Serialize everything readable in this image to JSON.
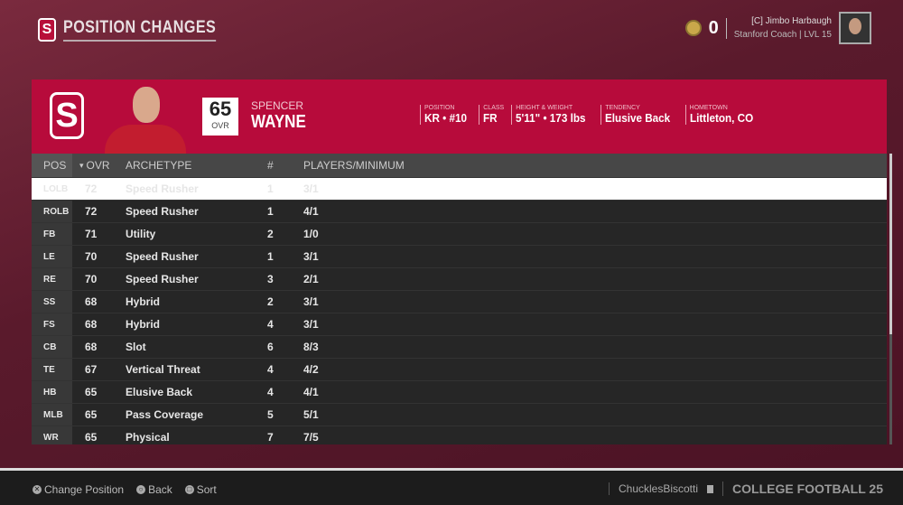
{
  "header": {
    "title": "POSITION CHANGES",
    "coins": "0",
    "coach_name": "[C] Jimbo Harbaugh",
    "coach_sub": "Stanford Coach | LVL 15"
  },
  "player": {
    "first_name": "SPENCER",
    "last_name": "WAYNE",
    "ovr": "65",
    "ovr_label": "OVR",
    "info": [
      {
        "label": "Position",
        "value": "KR • #10"
      },
      {
        "label": "Class",
        "value": "FR"
      },
      {
        "label": "Height & Weight",
        "value": "5'11\" • 173 lbs"
      },
      {
        "label": "Tendency",
        "value": "Elusive Back"
      },
      {
        "label": "Hometown",
        "value": "Littleton, CO"
      }
    ]
  },
  "table": {
    "headers": {
      "pos": "POS",
      "ovr": "OVR",
      "archetype": "ARCHETYPE",
      "num": "#",
      "pm": "PLAYERS/MINIMUM"
    },
    "sort_icon": "▾",
    "rows": [
      [
        "LOLB",
        "72",
        "Speed Rusher",
        "1",
        "3/1"
      ],
      [
        "ROLB",
        "72",
        "Speed Rusher",
        "1",
        "4/1"
      ],
      [
        "FB",
        "71",
        "Utility",
        "2",
        "1/0"
      ],
      [
        "LE",
        "70",
        "Speed Rusher",
        "1",
        "3/1"
      ],
      [
        "RE",
        "70",
        "Speed Rusher",
        "3",
        "2/1"
      ],
      [
        "SS",
        "68",
        "Hybrid",
        "2",
        "3/1"
      ],
      [
        "FS",
        "68",
        "Hybrid",
        "4",
        "3/1"
      ],
      [
        "CB",
        "68",
        "Slot",
        "6",
        "8/3"
      ],
      [
        "TE",
        "67",
        "Vertical Threat",
        "4",
        "4/2"
      ],
      [
        "HB",
        "65",
        "Elusive Back",
        "4",
        "4/1"
      ],
      [
        "MLB",
        "65",
        "Pass Coverage",
        "5",
        "5/1"
      ],
      [
        "WR",
        "65",
        "Physical",
        "7",
        "7/5"
      ]
    ]
  },
  "footer": {
    "hints": [
      {
        "icon": "cross-button",
        "label": "Change Position"
      },
      {
        "icon": "circle-button",
        "label": "Back"
      },
      {
        "icon": "square-button",
        "label": "Sort"
      }
    ],
    "gamertag": "ChucklesBiscotti",
    "game_logo": "COLLEGE FOOTBALL 25"
  },
  "colors": {
    "accent": "#b70b3b",
    "selected_row": "#ffffff",
    "row_bg": "#262626"
  }
}
